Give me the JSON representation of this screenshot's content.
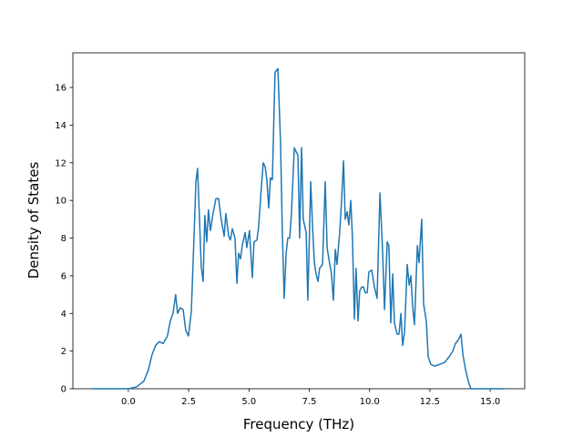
{
  "chart_data": {
    "type": "line",
    "x_label": "Frequency (THz)",
    "y_label": "Density of States",
    "x": [
      -1.5,
      0.0,
      0.34,
      0.64,
      0.83,
      0.98,
      1.13,
      1.28,
      1.44,
      1.62,
      1.74,
      1.85,
      1.96,
      2.04,
      2.15,
      2.27,
      2.38,
      2.49,
      2.61,
      2.72,
      2.8,
      2.87,
      2.95,
      3.02,
      3.1,
      3.17,
      3.25,
      3.32,
      3.4,
      3.51,
      3.63,
      3.74,
      3.85,
      3.97,
      4.04,
      4.16,
      4.23,
      4.31,
      4.42,
      4.5,
      4.57,
      4.65,
      4.72,
      4.84,
      4.91,
      5.02,
      5.14,
      5.21,
      5.33,
      5.4,
      5.52,
      5.59,
      5.67,
      5.74,
      5.82,
      5.89,
      5.97,
      6.08,
      6.2,
      6.31,
      6.38,
      6.46,
      6.54,
      6.61,
      6.69,
      6.76,
      6.88,
      6.95,
      7.03,
      7.1,
      7.18,
      7.25,
      7.37,
      7.44,
      7.56,
      7.63,
      7.71,
      7.78,
      7.86,
      7.93,
      8.05,
      8.16,
      8.24,
      8.31,
      8.42,
      8.5,
      8.58,
      8.65,
      8.76,
      8.84,
      8.92,
      8.99,
      9.07,
      9.14,
      9.22,
      9.29,
      9.37,
      9.44,
      9.52,
      9.59,
      9.67,
      9.75,
      9.82,
      9.9,
      9.97,
      10.09,
      10.2,
      10.31,
      10.43,
      10.54,
      10.62,
      10.73,
      10.8,
      10.88,
      10.96,
      11.03,
      11.14,
      11.22,
      11.3,
      11.37,
      11.45,
      11.56,
      11.64,
      11.71,
      11.79,
      11.86,
      11.98,
      12.05,
      12.16,
      12.24,
      12.35,
      12.43,
      12.54,
      12.69,
      12.92,
      13.11,
      13.3,
      13.45,
      13.56,
      13.68,
      13.79,
      13.87,
      13.98,
      14.09,
      14.2,
      15.6
    ],
    "series": [
      {
        "color": "#1f77b4",
        "values": [
          0,
          0,
          0.1,
          0.4,
          1.0,
          1.8,
          2.3,
          2.5,
          2.4,
          2.8,
          3.6,
          4.0,
          5.0,
          4.0,
          4.3,
          4.2,
          3.1,
          2.8,
          4.1,
          8.0,
          11.0,
          11.7,
          9.0,
          6.5,
          5.7,
          9.2,
          7.8,
          9.5,
          8.4,
          9.3,
          10.1,
          10.1,
          9.0,
          8.1,
          9.3,
          8.1,
          7.9,
          8.5,
          8.0,
          5.6,
          7.2,
          6.9,
          7.6,
          8.3,
          7.5,
          8.4,
          5.9,
          7.8,
          7.9,
          8.6,
          10.8,
          12.0,
          11.8,
          11.1,
          9.6,
          11.2,
          11.1,
          16.8,
          17.0,
          13.0,
          8.5,
          4.8,
          7.2,
          8.0,
          8.0,
          9.3,
          12.8,
          12.6,
          12.4,
          8.0,
          12.8,
          9.0,
          8.3,
          4.7,
          11.0,
          8.8,
          6.7,
          6.1,
          5.7,
          6.4,
          6.6,
          11.0,
          7.5,
          6.9,
          6.1,
          4.7,
          7.4,
          6.6,
          8.3,
          10.0,
          12.1,
          9.0,
          9.4,
          8.7,
          10.0,
          8.0,
          3.7,
          6.4,
          3.6,
          5.2,
          5.4,
          5.4,
          5.1,
          5.1,
          6.2,
          6.3,
          5.4,
          4.8,
          10.4,
          7.3,
          4.2,
          7.8,
          7.6,
          3.5,
          6.1,
          3.5,
          2.9,
          2.9,
          4.0,
          2.3,
          3.0,
          6.6,
          5.5,
          6.0,
          4.3,
          3.4,
          7.6,
          6.7,
          9.0,
          4.5,
          3.6,
          1.7,
          1.3,
          1.2,
          1.3,
          1.4,
          1.7,
          2.0,
          2.4,
          2.6,
          2.9,
          1.8,
          1.0,
          0.4,
          0,
          0
        ]
      }
    ],
    "xlim": [
      -2.3,
      16.43
    ],
    "ylim": [
      0,
      17.84
    ],
    "xticks": [
      {
        "value": 0,
        "label": "0.0"
      },
      {
        "value": 2.5,
        "label": "2.5"
      },
      {
        "value": 5,
        "label": "5.0"
      },
      {
        "value": 7.5,
        "label": "7.5"
      },
      {
        "value": 10,
        "label": "10.0"
      },
      {
        "value": 12.5,
        "label": "12.5"
      },
      {
        "value": 15,
        "label": "15.0"
      }
    ],
    "yticks": [
      0,
      2,
      4,
      6,
      8,
      10,
      12,
      14,
      16
    ],
    "grid": false
  }
}
